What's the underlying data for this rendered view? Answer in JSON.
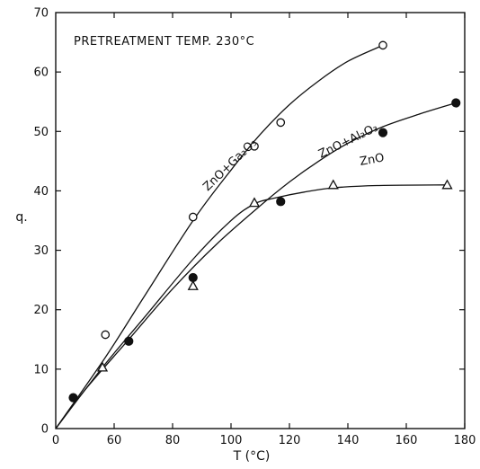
{
  "chart_data": {
    "type": "scatter",
    "title": "",
    "annotation": "PRETREATMENT TEMP. 230°C",
    "xlabel": "T (°C)",
    "ylabel": "q.",
    "xlim": [
      40,
      180
    ],
    "ylim": [
      0,
      70
    ],
    "x_ticks": [
      60,
      80,
      100,
      120,
      140,
      160,
      180
    ],
    "x_origin_label": "0",
    "y_ticks": [
      0,
      10,
      20,
      30,
      40,
      50,
      60,
      70
    ],
    "grid": false,
    "legend": "none",
    "series": [
      {
        "name": "ZnO+Ga2O3",
        "marker": "open-circle",
        "points": [
          [
            57,
            15.8
          ],
          [
            87,
            35.6
          ],
          [
            108,
            47.5
          ],
          [
            117,
            51.5
          ],
          [
            152,
            64.5
          ]
        ],
        "curve": [
          [
            40,
            0
          ],
          [
            57,
            12
          ],
          [
            70,
            22
          ],
          [
            87,
            35
          ],
          [
            100,
            43.5
          ],
          [
            110,
            49.5
          ],
          [
            120,
            54.5
          ],
          [
            130,
            58.5
          ],
          [
            140,
            61.8
          ],
          [
            152,
            64.5
          ]
        ]
      },
      {
        "name": "ZnO+Al2O3",
        "marker": "filled-circle",
        "points": [
          [
            46,
            5.2
          ],
          [
            65,
            14.7
          ],
          [
            87,
            25.4
          ],
          [
            117,
            38.2
          ],
          [
            152,
            49.8
          ],
          [
            177,
            54.8
          ]
        ],
        "curve": [
          [
            40,
            0
          ],
          [
            50,
            6.5
          ],
          [
            65,
            15
          ],
          [
            80,
            23.5
          ],
          [
            95,
            31
          ],
          [
            110,
            37.5
          ],
          [
            120,
            41.5
          ],
          [
            130,
            45
          ],
          [
            140,
            48
          ],
          [
            152,
            50.8
          ],
          [
            165,
            53
          ],
          [
            177,
            54.8
          ]
        ]
      },
      {
        "name": "ZnO",
        "marker": "open-triangle",
        "points": [
          [
            56,
            10.3
          ],
          [
            87,
            24
          ],
          [
            108,
            38
          ],
          [
            135,
            41
          ],
          [
            174,
            41
          ]
        ],
        "curve": [
          [
            40,
            0
          ],
          [
            56,
            10.3
          ],
          [
            70,
            18.5
          ],
          [
            87,
            28.5
          ],
          [
            100,
            35
          ],
          [
            108,
            37.8
          ],
          [
            115,
            38.8
          ],
          [
            125,
            39.8
          ],
          [
            135,
            40.5
          ],
          [
            150,
            40.9
          ],
          [
            174,
            41
          ]
        ]
      }
    ]
  },
  "labels": {
    "ga": "ZnO+Ga₂O₃",
    "al": "ZnO+Al₂O₃",
    "zno": "ZnO"
  },
  "colors": {
    "ink": "#111111",
    "background": "#ffffff"
  }
}
